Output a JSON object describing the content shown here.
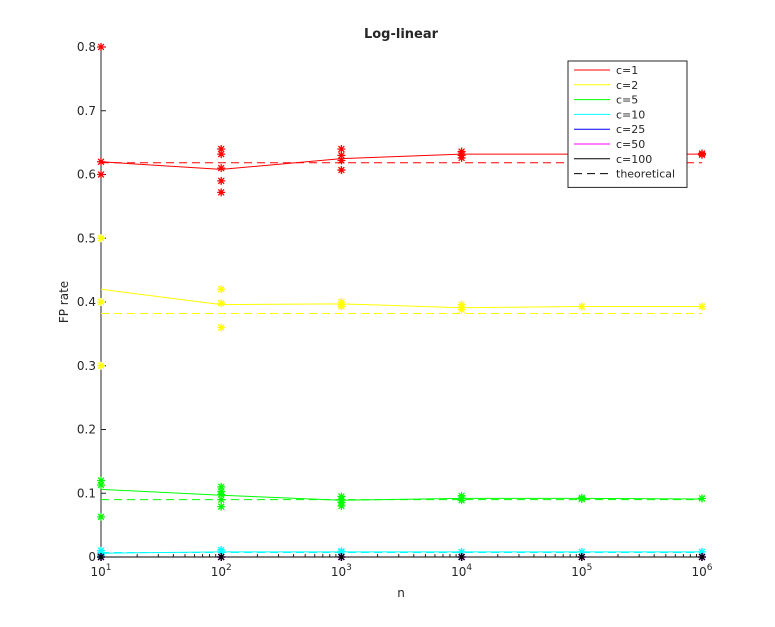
{
  "chart_data": {
    "type": "line",
    "title": "Log-linear",
    "xlabel": "n",
    "ylabel": "FP rate",
    "xscale": "log",
    "xlim": [
      10,
      1000000
    ],
    "ylim": [
      0,
      0.8
    ],
    "xticks": [
      {
        "value": 10,
        "base": "10",
        "exp": "1"
      },
      {
        "value": 100,
        "base": "10",
        "exp": "2"
      },
      {
        "value": 1000,
        "base": "10",
        "exp": "3"
      },
      {
        "value": 10000,
        "base": "10",
        "exp": "4"
      },
      {
        "value": 100000,
        "base": "10",
        "exp": "5"
      },
      {
        "value": 1000000,
        "base": "10",
        "exp": "6"
      }
    ],
    "yticks": [
      "0",
      "0.1",
      "0.2",
      "0.3",
      "0.4",
      "0.5",
      "0.6",
      "0.7",
      "0.8"
    ],
    "grid": false,
    "legend_position": "top-right",
    "x": [
      10,
      100,
      1000,
      10000,
      100000,
      1000000
    ],
    "series": [
      {
        "name": "c=1",
        "color": "#ff0000",
        "values": [
          0.62,
          0.608,
          0.625,
          0.632,
          0.632,
          0.632
        ],
        "theoretical": 0.6185,
        "points": [
          [
            10,
            0.8
          ],
          [
            10,
            0.62
          ],
          [
            10,
            0.6
          ],
          [
            100,
            0.64
          ],
          [
            100,
            0.632
          ],
          [
            100,
            0.61
          ],
          [
            100,
            0.59
          ],
          [
            100,
            0.572
          ],
          [
            1000,
            0.64
          ],
          [
            1000,
            0.63
          ],
          [
            1000,
            0.622
          ],
          [
            1000,
            0.607
          ],
          [
            10000,
            0.636
          ],
          [
            10000,
            0.63
          ],
          [
            10000,
            0.626
          ],
          [
            1000000,
            0.633
          ],
          [
            1000000,
            0.631
          ]
        ]
      },
      {
        "name": "c=2",
        "color": "#ffff00",
        "values": [
          0.42,
          0.396,
          0.397,
          0.391,
          0.393,
          0.393
        ],
        "theoretical": 0.382,
        "points": [
          [
            10,
            0.5
          ],
          [
            10,
            0.4
          ],
          [
            10,
            0.3
          ],
          [
            100,
            0.42
          ],
          [
            100,
            0.398
          ],
          [
            100,
            0.36
          ],
          [
            1000,
            0.4
          ],
          [
            1000,
            0.396
          ],
          [
            1000,
            0.393
          ],
          [
            10000,
            0.396
          ],
          [
            10000,
            0.392
          ],
          [
            10000,
            0.388
          ],
          [
            100000,
            0.393
          ],
          [
            1000000,
            0.393
          ]
        ]
      },
      {
        "name": "c=5",
        "color": "#00ff00",
        "values": [
          0.106,
          0.097,
          0.089,
          0.092,
          0.092,
          0.091
        ],
        "theoretical": 0.09,
        "points": [
          [
            10,
            0.12
          ],
          [
            10,
            0.113
          ],
          [
            10,
            0.063
          ],
          [
            100,
            0.11
          ],
          [
            100,
            0.103
          ],
          [
            100,
            0.098
          ],
          [
            100,
            0.09
          ],
          [
            100,
            0.079
          ],
          [
            1000,
            0.095
          ],
          [
            1000,
            0.09
          ],
          [
            1000,
            0.086
          ],
          [
            1000,
            0.08
          ],
          [
            10000,
            0.096
          ],
          [
            10000,
            0.092
          ],
          [
            10000,
            0.089
          ],
          [
            100000,
            0.093
          ],
          [
            100000,
            0.091
          ],
          [
            1000000,
            0.092
          ]
        ]
      },
      {
        "name": "c=10",
        "color": "#00ffff",
        "values": [
          0.006,
          0.008,
          0.008,
          0.008,
          0.008,
          0.008
        ],
        "theoretical": 0.007,
        "points": [
          [
            10,
            0.01
          ],
          [
            10,
            0.006
          ],
          [
            10,
            0.003
          ],
          [
            100,
            0.011
          ],
          [
            100,
            0.008
          ],
          [
            1000,
            0.009
          ],
          [
            1000,
            0.008
          ],
          [
            10000,
            0.008
          ],
          [
            100000,
            0.008
          ],
          [
            1000000,
            0.008
          ]
        ]
      },
      {
        "name": "c=25",
        "color": "#0000ff",
        "values": [
          0,
          0,
          0,
          0,
          0,
          0
        ],
        "theoretical": 0,
        "points": [
          [
            10,
            0
          ],
          [
            100,
            0
          ],
          [
            1000,
            0
          ],
          [
            10000,
            0
          ],
          [
            100000,
            0
          ],
          [
            1000000,
            0
          ]
        ]
      },
      {
        "name": "c=50",
        "color": "#ff00ff",
        "values": [
          0,
          0,
          0,
          0,
          0,
          0
        ],
        "theoretical": 0,
        "points": [
          [
            10,
            0
          ],
          [
            100,
            0
          ],
          [
            1000,
            0
          ],
          [
            10000,
            0
          ],
          [
            100000,
            0
          ],
          [
            1000000,
            0
          ]
        ]
      },
      {
        "name": "c=100",
        "color": "#000000",
        "values": [
          0,
          0,
          0,
          0,
          0,
          0
        ],
        "theoretical": 0,
        "points": [
          [
            10,
            0
          ],
          [
            100,
            0
          ],
          [
            1000,
            0
          ],
          [
            10000,
            0
          ],
          [
            100000,
            0
          ],
          [
            1000000,
            0
          ]
        ]
      }
    ],
    "legend": [
      {
        "label": "c=1",
        "color": "#ff0000",
        "dash": false
      },
      {
        "label": "c=2",
        "color": "#ffff00",
        "dash": false
      },
      {
        "label": "c=5",
        "color": "#00ff00",
        "dash": false
      },
      {
        "label": "c=10",
        "color": "#00ffff",
        "dash": false
      },
      {
        "label": "c=25",
        "color": "#0000ff",
        "dash": false
      },
      {
        "label": "c=50",
        "color": "#ff00ff",
        "dash": false
      },
      {
        "label": "c=100",
        "color": "#000000",
        "dash": false
      },
      {
        "label": "theoretical",
        "color": "#000000",
        "dash": true
      }
    ]
  }
}
